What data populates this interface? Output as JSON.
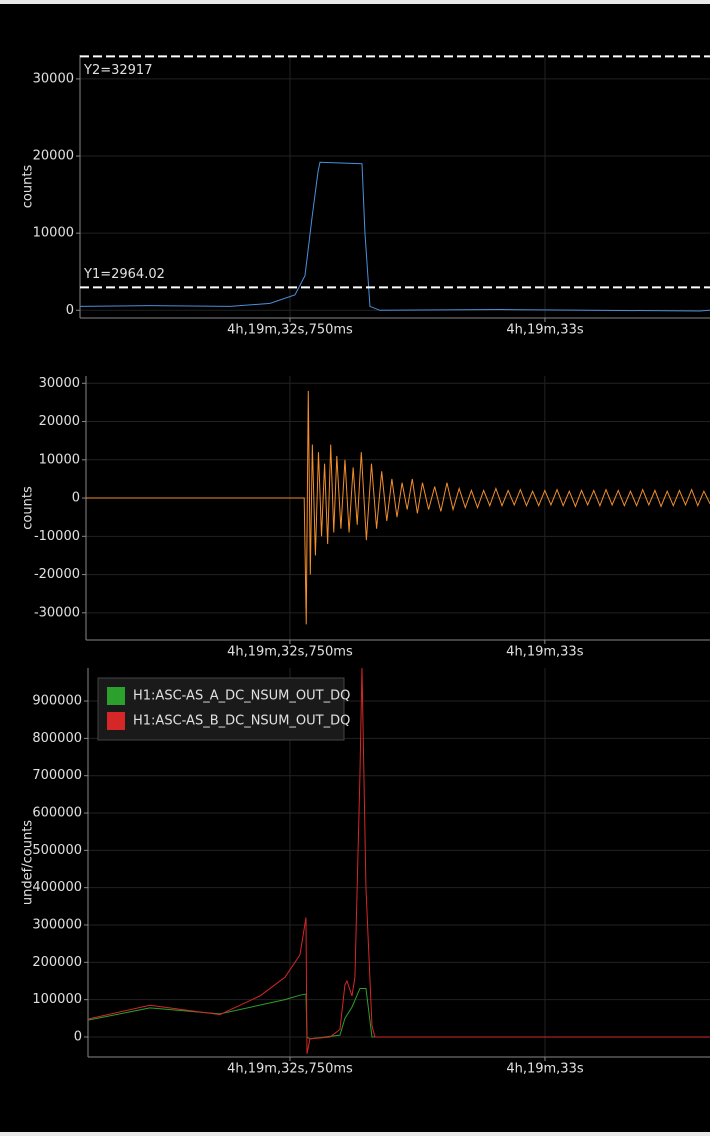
{
  "chart_data": [
    {
      "type": "line",
      "ylabel": "counts",
      "color": "#4a90d9",
      "grid": true,
      "ylim": [
        -1000,
        33100
      ],
      "yticks": [
        0,
        10000,
        20000,
        30000
      ],
      "xlim": [
        32.5441,
        33.1618
      ],
      "xticks": [
        {
          "value": 32.75,
          "label": "4h,19m,32s,750ms"
        },
        {
          "value": 33.0,
          "label": "4h,19m,33s"
        }
      ],
      "x": [
        32.5441,
        32.6127,
        32.6912,
        32.7304,
        32.7549,
        32.7647,
        32.7716,
        32.7775,
        32.7794,
        32.8206,
        32.8235,
        32.8284,
        32.8382,
        32.9559,
        33.152,
        33.1618
      ],
      "values": [
        500,
        600,
        500,
        900,
        2000,
        4500,
        12000,
        18000,
        19200,
        19000,
        10000,
        500,
        0,
        100,
        -100,
        0
      ],
      "cursors": [
        {
          "label": "Y2=32917",
          "value": 32917
        },
        {
          "label": "Y1=2964.02",
          "value": 2964.02
        }
      ]
    },
    {
      "type": "line",
      "ylabel": "counts",
      "color": "#f28e2b",
      "grid": true,
      "ylim": [
        -37100,
        31900
      ],
      "yticks": [
        -30000,
        -20000,
        -10000,
        0,
        10000,
        20000,
        30000
      ],
      "xlim": [
        32.55,
        33.162
      ],
      "xticks": [
        {
          "value": 32.75,
          "label": "4h,19m,32s,750ms"
        },
        {
          "value": 33.0,
          "label": "4h,19m,33s"
        }
      ],
      "x": [
        32.55,
        32.764,
        32.766,
        32.768,
        32.77,
        32.772,
        32.775,
        32.778,
        32.781,
        32.784,
        32.787,
        32.79,
        32.793,
        32.796,
        32.8,
        32.804,
        32.808,
        32.812,
        32.816,
        32.82,
        32.825,
        32.83,
        32.835,
        32.84,
        32.845,
        32.85,
        32.855,
        32.86,
        32.865,
        32.87,
        32.875,
        32.88,
        32.886,
        32.892,
        32.898,
        32.904,
        32.91,
        32.916,
        32.922,
        32.928,
        32.934,
        32.94,
        32.946,
        32.952,
        32.958,
        32.964,
        32.97,
        32.976,
        32.982,
        32.988,
        32.994,
        33.0,
        33.006,
        33.012,
        33.018,
        33.024,
        33.03,
        33.036,
        33.042,
        33.048,
        33.054,
        33.06,
        33.066,
        33.072,
        33.078,
        33.084,
        33.09,
        33.096,
        33.102,
        33.108,
        33.114,
        33.12,
        33.126,
        33.132,
        33.138,
        33.144,
        33.15,
        33.156,
        33.162
      ],
      "values": [
        0,
        0,
        -33000,
        28000,
        -20000,
        14000,
        -15000,
        12000,
        -10000,
        9000,
        -12000,
        14000,
        -9000,
        11000,
        -8000,
        10000,
        -9000,
        8000,
        -7000,
        12000,
        -11000,
        9000,
        -8000,
        7000,
        -6000,
        5000,
        -5000,
        4000,
        -3000,
        5000,
        -4000,
        4000,
        -3000,
        3000,
        -3500,
        4000,
        -3000,
        2500,
        -2500,
        2000,
        -2500,
        2000,
        -2000,
        2500,
        -2000,
        2000,
        -1800,
        2200,
        -2000,
        1800,
        -2000,
        2000,
        -1800,
        2200,
        -2000,
        1800,
        -2200,
        2000,
        -1800,
        2000,
        -2000,
        2200,
        -1800,
        2000,
        -2000,
        1800,
        -2000,
        2200,
        -1800,
        2000,
        -2200,
        1800,
        -2000,
        2000,
        -1800,
        2200,
        -2000,
        1800,
        -1500
      ]
    },
    {
      "type": "line",
      "ylabel": "undef/counts",
      "grid": true,
      "ylim": [
        -53600,
        988500
      ],
      "yticks": [
        0,
        100000,
        200000,
        300000,
        400000,
        500000,
        600000,
        700000,
        800000,
        900000
      ],
      "xlim": [
        32.552,
        33.1618
      ],
      "xticks": [
        {
          "value": 32.75,
          "label": "4h,19m,32s,750ms"
        },
        {
          "value": 33.0,
          "label": "4h,19m,33s"
        }
      ],
      "series": [
        {
          "name": "H1:ASC-AS_A_DC_NSUM_OUT_DQ",
          "color": "#2ca02c",
          "x": [
            32.552,
            32.6127,
            32.6814,
            32.7451,
            32.7598,
            32.7657,
            32.7667,
            32.7696,
            32.799,
            32.8039,
            32.8108,
            32.8186,
            32.8245,
            32.8304,
            33.1618
          ],
          "values": [
            45000,
            78000,
            62000,
            100000,
            112000,
            115000,
            0,
            -5000,
            5000,
            50000,
            80000,
            130000,
            130000,
            0,
            0
          ]
        },
        {
          "name": "H1:ASC-AS_B_DC_NSUM_OUT_DQ",
          "color": "#d62728",
          "x": [
            32.552,
            32.6127,
            32.6814,
            32.7206,
            32.7451,
            32.7598,
            32.7657,
            32.7667,
            32.7696,
            32.7892,
            32.799,
            32.8039,
            32.8059,
            32.8108,
            32.8137,
            32.8186,
            32.8206,
            32.8245,
            32.8304,
            32.8333,
            33.1618
          ],
          "values": [
            48000,
            85000,
            60000,
            110000,
            160000,
            220000,
            320000,
            -45000,
            -5000,
            0,
            20000,
            140000,
            150000,
            110000,
            160000,
            700000,
            990000,
            400000,
            30000,
            0,
            0
          ]
        }
      ]
    }
  ]
}
